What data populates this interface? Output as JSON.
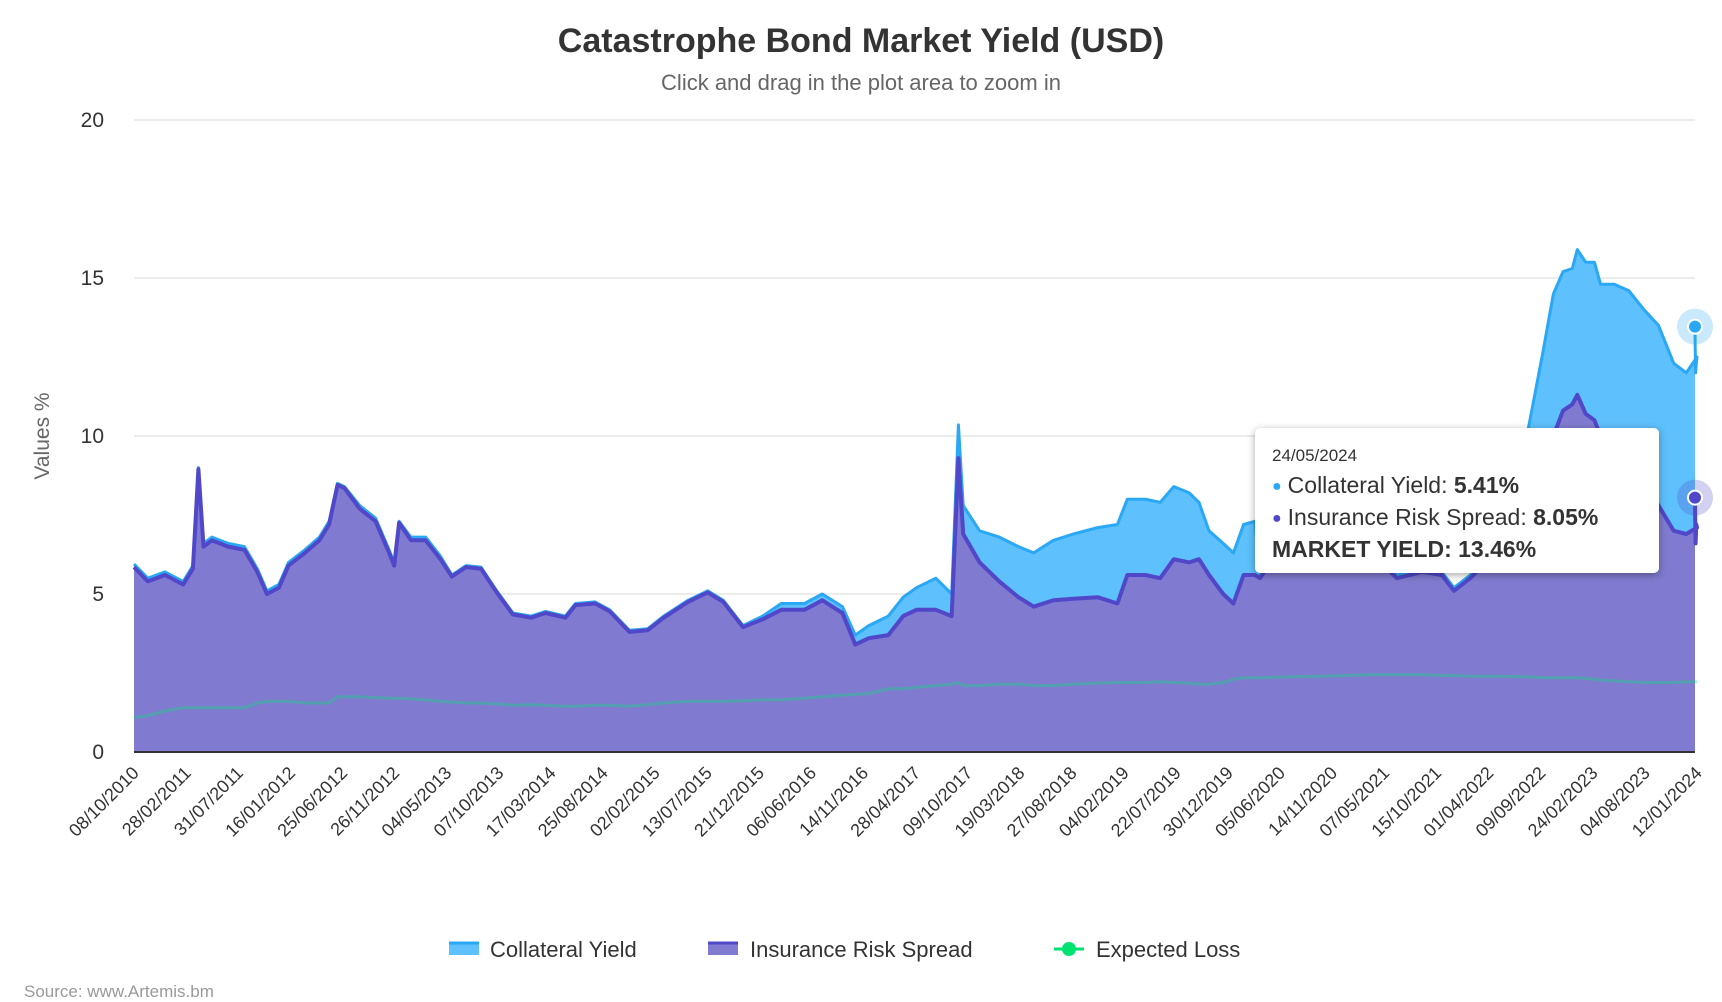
{
  "chart_data": {
    "type": "area",
    "stacked": true,
    "title": "Catastrophe Bond Market Yield (USD)",
    "subtitle": "Click and drag in the plot area to zoom in",
    "ylabel": "Values %",
    "xlabel": "",
    "ylim": [
      0,
      20
    ],
    "yticks": [
      0,
      5,
      10,
      15,
      20
    ],
    "grid": true,
    "legend_position": "bottom",
    "x_tick_labels": [
      "08/10/2010",
      "28/02/2011",
      "31/07/2011",
      "16/01/2012",
      "25/06/2012",
      "26/11/2012",
      "04/05/2013",
      "07/10/2013",
      "17/03/2014",
      "25/08/2014",
      "02/02/2015",
      "13/07/2015",
      "21/12/2015",
      "06/06/2016",
      "14/11/2016",
      "28/04/2017",
      "09/10/2017",
      "19/03/2018",
      "27/08/2018",
      "04/02/2019",
      "22/07/2019",
      "30/12/2019",
      "05/06/2020",
      "14/11/2020",
      "07/05/2021",
      "15/10/2021",
      "01/04/2022",
      "09/09/2022",
      "24/02/2023",
      "04/08/2023",
      "12/01/2024"
    ],
    "series_colors": {
      "collateral": "#5ec0fc",
      "collateral_line": "#2aa8f5",
      "spread": "#807bd0",
      "spread_line": "#5147c9",
      "expected_loss": "#00e272"
    },
    "series": [
      {
        "name": "Collateral Yield",
        "key": "collateral"
      },
      {
        "name": "Insurance Risk Spread",
        "key": "spread"
      },
      {
        "name": "Expected Loss",
        "key": "expected_loss"
      }
    ],
    "points": [
      [
        "2010-10-08",
        0.1,
        5.85,
        1.1
      ],
      [
        "2010-11-15",
        0.1,
        5.4,
        1.15
      ],
      [
        "2011-01-01",
        0.1,
        5.6,
        1.3
      ],
      [
        "2011-02-20",
        0.1,
        5.3,
        1.4
      ],
      [
        "2011-03-20",
        0.1,
        5.8,
        1.4
      ],
      [
        "2011-04-05",
        0.05,
        8.95,
        1.4
      ],
      [
        "2011-04-20",
        0.1,
        6.5,
        1.4
      ],
      [
        "2011-05-15",
        0.1,
        6.7,
        1.4
      ],
      [
        "2011-07-01",
        0.1,
        6.5,
        1.4
      ],
      [
        "2011-08-20",
        0.1,
        6.4,
        1.4
      ],
      [
        "2011-10-01",
        0.1,
        5.7,
        1.55
      ],
      [
        "2011-11-01",
        0.1,
        5.0,
        1.6
      ],
      [
        "2011-12-10",
        0.1,
        5.2,
        1.6
      ],
      [
        "2012-01-10",
        0.1,
        5.9,
        1.6
      ],
      [
        "2012-03-01",
        0.1,
        6.3,
        1.55
      ],
      [
        "2012-04-15",
        0.1,
        6.7,
        1.55
      ],
      [
        "2012-05-15",
        0.1,
        7.2,
        1.55
      ],
      [
        "2012-06-10",
        0.05,
        8.45,
        1.75
      ],
      [
        "2012-07-01",
        0.05,
        8.35,
        1.75
      ],
      [
        "2012-08-15",
        0.1,
        7.7,
        1.75
      ],
      [
        "2012-10-01",
        0.1,
        7.3,
        1.72
      ],
      [
        "2012-11-10",
        0.1,
        6.3,
        1.7
      ],
      [
        "2012-11-25",
        0.1,
        5.9,
        1.7
      ],
      [
        "2012-12-10",
        0.05,
        7.25,
        1.7
      ],
      [
        "2013-01-15",
        0.1,
        6.7,
        1.68
      ],
      [
        "2013-03-01",
        0.1,
        6.7,
        1.65
      ],
      [
        "2013-04-15",
        0.1,
        6.1,
        1.6
      ],
      [
        "2013-05-20",
        0.05,
        5.55,
        1.58
      ],
      [
        "2013-07-01",
        0.05,
        5.85,
        1.55
      ],
      [
        "2013-08-15",
        0.05,
        5.8,
        1.55
      ],
      [
        "2013-10-01",
        0.05,
        5.05,
        1.52
      ],
      [
        "2013-11-20",
        0.05,
        4.35,
        1.48
      ],
      [
        "2014-01-15",
        0.05,
        4.25,
        1.5
      ],
      [
        "2014-03-01",
        0.05,
        4.4,
        1.48
      ],
      [
        "2014-05-01",
        0.05,
        4.25,
        1.45
      ],
      [
        "2014-06-01",
        0.05,
        4.65,
        1.45
      ],
      [
        "2014-08-01",
        0.05,
        4.7,
        1.48
      ],
      [
        "2014-09-15",
        0.05,
        4.45,
        1.48
      ],
      [
        "2014-11-15",
        0.05,
        3.8,
        1.45
      ],
      [
        "2015-01-10",
        0.05,
        3.85,
        1.5
      ],
      [
        "2015-03-01",
        0.05,
        4.25,
        1.55
      ],
      [
        "2015-05-15",
        0.05,
        4.75,
        1.6
      ],
      [
        "2015-07-15",
        0.05,
        5.05,
        1.6
      ],
      [
        "2015-09-01",
        0.05,
        4.75,
        1.6
      ],
      [
        "2015-11-01",
        0.05,
        3.95,
        1.62
      ],
      [
        "2016-01-01",
        0.1,
        4.2,
        1.65
      ],
      [
        "2016-03-01",
        0.2,
        4.5,
        1.65
      ],
      [
        "2016-05-15",
        0.2,
        4.5,
        1.7
      ],
      [
        "2016-07-10",
        0.2,
        4.8,
        1.75
      ],
      [
        "2016-09-10",
        0.2,
        4.4,
        1.8
      ],
      [
        "2016-10-20",
        0.3,
        3.4,
        1.82
      ],
      [
        "2016-12-01",
        0.4,
        3.6,
        1.85
      ],
      [
        "2017-02-01",
        0.6,
        3.7,
        2.0
      ],
      [
        "2017-03-20",
        0.6,
        4.3,
        2.0
      ],
      [
        "2017-05-01",
        0.7,
        4.5,
        2.05
      ],
      [
        "2017-07-01",
        1.0,
        4.5,
        2.1
      ],
      [
        "2017-08-20",
        0.7,
        4.3,
        2.15
      ],
      [
        "2017-09-10",
        1.05,
        9.3,
        2.2
      ],
      [
        "2017-09-25",
        0.9,
        6.9,
        2.1
      ],
      [
        "2017-11-15",
        1.0,
        6.0,
        2.1
      ],
      [
        "2018-01-15",
        1.4,
        5.4,
        2.15
      ],
      [
        "2018-03-15",
        1.6,
        4.9,
        2.15
      ],
      [
        "2018-05-01",
        1.7,
        4.6,
        2.1
      ],
      [
        "2018-07-01",
        1.9,
        4.8,
        2.1
      ],
      [
        "2018-09-01",
        2.05,
        4.85,
        2.15
      ],
      [
        "2018-11-15",
        2.2,
        4.9,
        2.18
      ],
      [
        "2019-01-15",
        2.5,
        4.7,
        2.2
      ],
      [
        "2019-02-15",
        2.4,
        5.6,
        2.2
      ],
      [
        "2019-04-15",
        2.4,
        5.6,
        2.2
      ],
      [
        "2019-06-01",
        2.4,
        5.5,
        2.22
      ],
      [
        "2019-07-15",
        2.3,
        6.1,
        2.2
      ],
      [
        "2019-09-01",
        2.2,
        6.0,
        2.18
      ],
      [
        "2019-10-01",
        1.8,
        6.1,
        2.15
      ],
      [
        "2019-11-01",
        1.4,
        5.6,
        2.15
      ],
      [
        "2019-12-15",
        1.6,
        5.0,
        2.2
      ],
      [
        "2020-01-15",
        1.6,
        4.7,
        2.3
      ],
      [
        "2020-02-15",
        1.6,
        5.6,
        2.35
      ],
      [
        "2020-03-20",
        1.7,
        5.6,
        2.35
      ],
      [
        "2020-04-05",
        0.1,
        5.5,
        2.35
      ],
      [
        "2020-07-01",
        0.1,
        6.9,
        2.38
      ],
      [
        "2020-10-01",
        0.1,
        7.2,
        2.4
      ],
      [
        "2021-01-01",
        0.1,
        6.9,
        2.42
      ],
      [
        "2021-04-01",
        0.1,
        6.2,
        2.45
      ],
      [
        "2021-06-15",
        0.1,
        5.5,
        2.45
      ],
      [
        "2021-09-01",
        0.1,
        5.7,
        2.45
      ],
      [
        "2021-11-01",
        0.1,
        5.6,
        2.42
      ],
      [
        "2021-12-10",
        0.1,
        5.1,
        2.42
      ],
      [
        "2022-02-01",
        0.1,
        5.5,
        2.4
      ],
      [
        "2022-04-01",
        0.2,
        6.1,
        2.4
      ],
      [
        "2022-06-01",
        0.5,
        7.3,
        2.4
      ],
      [
        "2022-08-01",
        1.4,
        8.8,
        2.38
      ],
      [
        "2022-09-15",
        3.6,
        9.0,
        2.35
      ],
      [
        "2022-10-20",
        4.5,
        10.0,
        2.35
      ],
      [
        "2022-11-20",
        4.4,
        10.8,
        2.35
      ],
      [
        "2022-12-20",
        4.3,
        11.0,
        2.35
      ],
      [
        "2023-01-05",
        4.6,
        11.3,
        2.35
      ],
      [
        "2023-02-01",
        4.8,
        10.7,
        2.33
      ],
      [
        "2023-03-01",
        5.0,
        10.5,
        2.3
      ],
      [
        "2023-03-20",
        4.8,
        10.0,
        2.28
      ],
      [
        "2023-05-01",
        5.3,
        9.5,
        2.25
      ],
      [
        "2023-06-15",
        5.6,
        9.0,
        2.22
      ],
      [
        "2023-08-01",
        5.5,
        8.5,
        2.2
      ],
      [
        "2023-09-15",
        5.7,
        7.8,
        2.2
      ],
      [
        "2023-11-01",
        5.3,
        7.0,
        2.2
      ],
      [
        "2023-12-10",
        5.1,
        6.9,
        2.22
      ],
      [
        "2024-01-15",
        5.4,
        7.1,
        2.22
      ],
      [
        "2024-03-01",
        5.1,
        7.2,
        2.22
      ],
      [
        "2024-04-15",
        5.4,
        6.6,
        2.22
      ],
      [
        "2024-05-10",
        5.4,
        7.4,
        2.22
      ],
      [
        "2024-05-24",
        5.41,
        8.05,
        2.22
      ]
    ]
  },
  "tooltip": {
    "date": "24/05/2024",
    "collateral_label": "Collateral Yield: ",
    "collateral_value": "5.41%",
    "spread_label": "Insurance Risk Spread: ",
    "spread_value": "8.05%",
    "market_yield_label": "MARKET YIELD: ",
    "market_yield_value": "13.46%"
  },
  "credits": "Source: www.Artemis.bm"
}
